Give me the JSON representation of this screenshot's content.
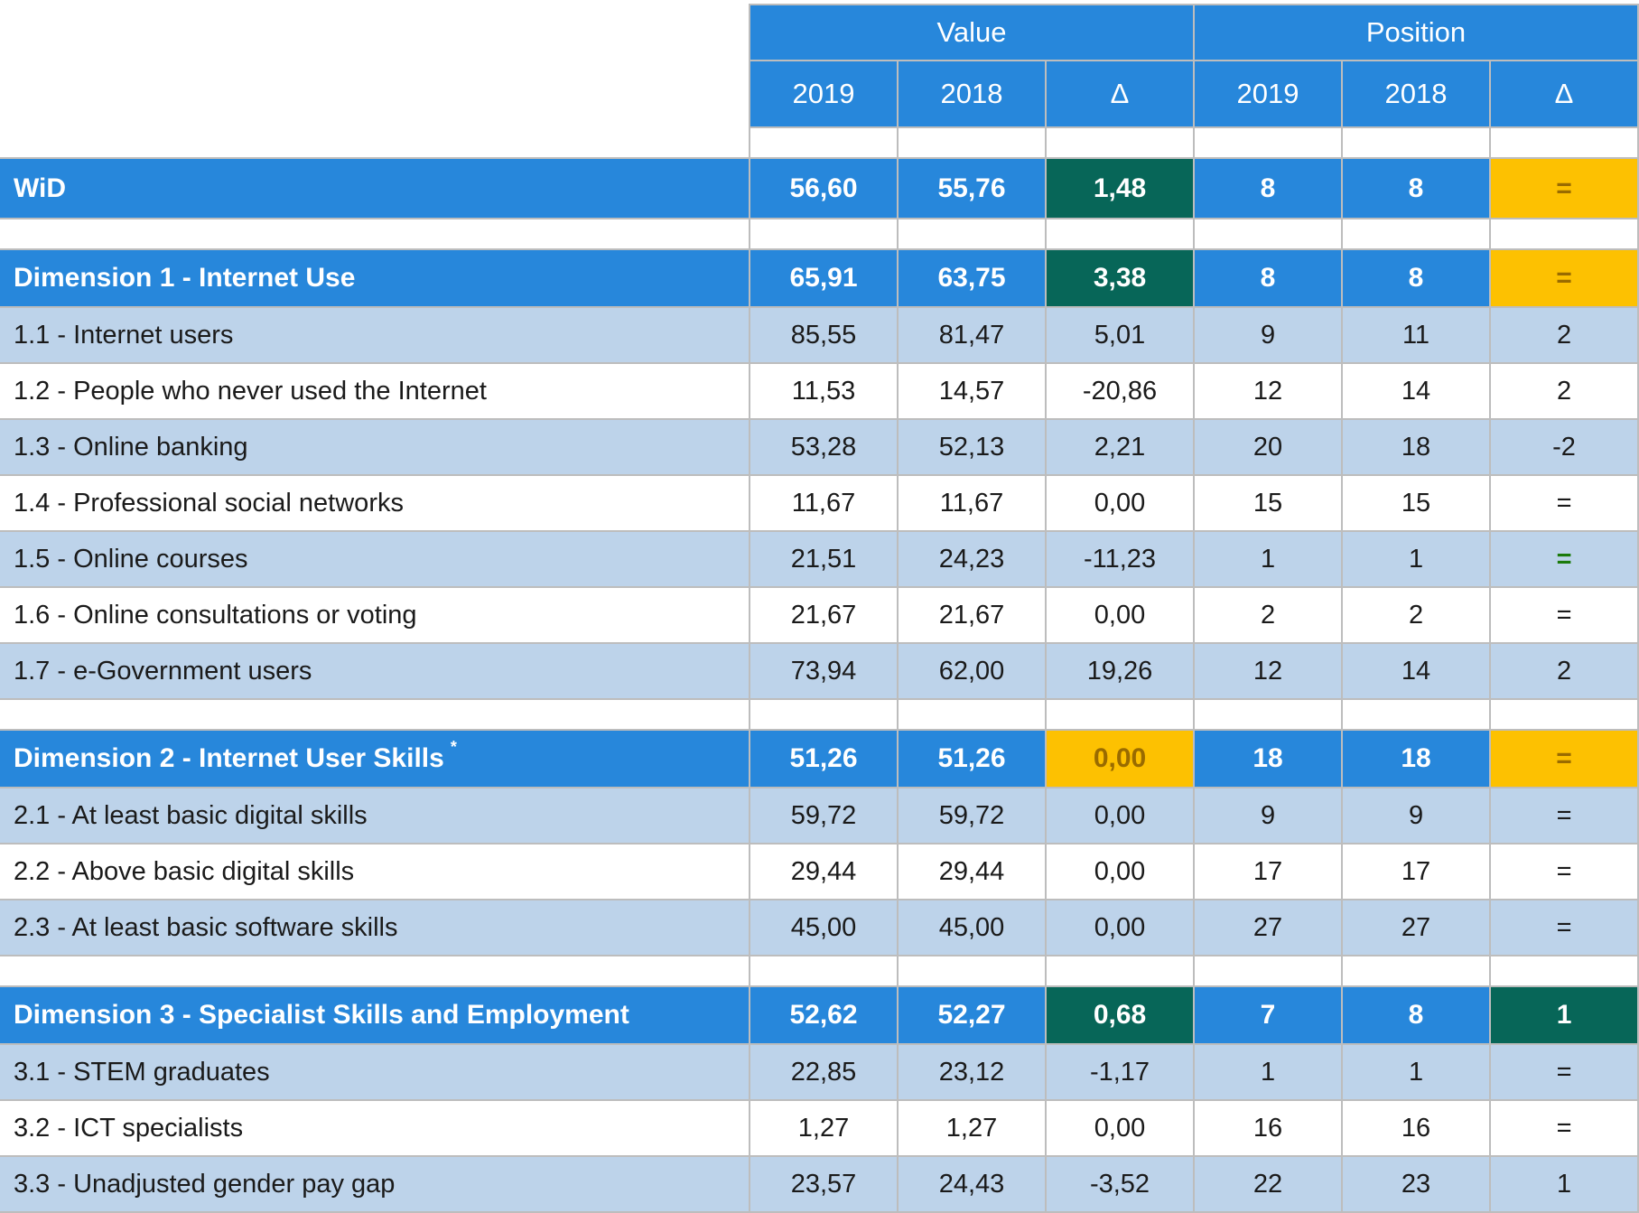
{
  "colors": {
    "blue": "#2787DB",
    "light_blue": "#BDD3EA",
    "green": "#076658",
    "yellow": "#FDC101",
    "yellow_text": "#996B00",
    "green_text": "#1B7A0B",
    "border": "#BDBDBD",
    "text": "#1A1A1A"
  },
  "chart_data": {
    "type": "table",
    "column_groups": [
      {
        "label": "Value",
        "span": 3
      },
      {
        "label": "Position",
        "span": 3
      }
    ],
    "columns": [
      "2019",
      "2018",
      "Δ",
      "2019",
      "2018",
      "Δ"
    ],
    "rows": [
      {
        "type": "spacer"
      },
      {
        "type": "total",
        "label": "WiD",
        "cells": [
          {
            "v": "56,60"
          },
          {
            "v": "55,76"
          },
          {
            "v": "1,48",
            "c": "green"
          },
          {
            "v": "8"
          },
          {
            "v": "8"
          },
          {
            "v": "=",
            "c": "yellow"
          }
        ]
      },
      {
        "type": "spacer"
      },
      {
        "type": "dimension",
        "label": "Dimension 1 - Internet Use",
        "cells": [
          {
            "v": "65,91"
          },
          {
            "v": "63,75"
          },
          {
            "v": "3,38",
            "c": "green"
          },
          {
            "v": "8"
          },
          {
            "v": "8"
          },
          {
            "v": "=",
            "c": "yellow"
          }
        ]
      },
      {
        "type": "indicator",
        "shade": "alt",
        "label": "1.1 - Internet users",
        "cells": [
          {
            "v": "85,55"
          },
          {
            "v": "81,47"
          },
          {
            "v": "5,01"
          },
          {
            "v": "9"
          },
          {
            "v": "11"
          },
          {
            "v": "2"
          }
        ]
      },
      {
        "type": "indicator",
        "shade": "",
        "label": "1.2 - People who never used the Internet",
        "cells": [
          {
            "v": "11,53"
          },
          {
            "v": "14,57"
          },
          {
            "v": "-20,86"
          },
          {
            "v": "12"
          },
          {
            "v": "14"
          },
          {
            "v": "2"
          }
        ]
      },
      {
        "type": "indicator",
        "shade": "alt",
        "label": "1.3 - Online banking",
        "cells": [
          {
            "v": "53,28"
          },
          {
            "v": "52,13"
          },
          {
            "v": "2,21"
          },
          {
            "v": "20"
          },
          {
            "v": "18"
          },
          {
            "v": "-2"
          }
        ]
      },
      {
        "type": "indicator",
        "shade": "",
        "label": "1.4 - Professional social networks",
        "cells": [
          {
            "v": "11,67"
          },
          {
            "v": "11,67"
          },
          {
            "v": "0,00"
          },
          {
            "v": "15"
          },
          {
            "v": "15"
          },
          {
            "v": "="
          }
        ]
      },
      {
        "type": "indicator",
        "shade": "alt",
        "label": "1.5 - Online courses",
        "cells": [
          {
            "v": "21,51"
          },
          {
            "v": "24,23"
          },
          {
            "v": "-11,23"
          },
          {
            "v": "1"
          },
          {
            "v": "1"
          },
          {
            "v": "=",
            "c": "green-text"
          }
        ]
      },
      {
        "type": "indicator",
        "shade": "",
        "label": "1.6 - Online consultations or voting",
        "cells": [
          {
            "v": "21,67"
          },
          {
            "v": "21,67"
          },
          {
            "v": "0,00"
          },
          {
            "v": "2"
          },
          {
            "v": "2"
          },
          {
            "v": "="
          }
        ]
      },
      {
        "type": "indicator",
        "shade": "alt",
        "label": "1.7 - e-Government users",
        "cells": [
          {
            "v": "73,94"
          },
          {
            "v": "62,00"
          },
          {
            "v": "19,26"
          },
          {
            "v": "12"
          },
          {
            "v": "14"
          },
          {
            "v": "2"
          }
        ]
      },
      {
        "type": "spacer"
      },
      {
        "type": "dimension",
        "label": "Dimension 2 - Internet User Skills",
        "sup": "*",
        "cells": [
          {
            "v": "51,26"
          },
          {
            "v": "51,26"
          },
          {
            "v": "0,00",
            "c": "yellow"
          },
          {
            "v": "18"
          },
          {
            "v": "18"
          },
          {
            "v": "=",
            "c": "yellow"
          }
        ]
      },
      {
        "type": "indicator",
        "shade": "alt",
        "label": "2.1 - At least basic digital skills",
        "cells": [
          {
            "v": "59,72"
          },
          {
            "v": "59,72"
          },
          {
            "v": "0,00"
          },
          {
            "v": "9"
          },
          {
            "v": "9"
          },
          {
            "v": "="
          }
        ]
      },
      {
        "type": "indicator",
        "shade": "",
        "label": "2.2 - Above basic digital skills",
        "cells": [
          {
            "v": "29,44"
          },
          {
            "v": "29,44"
          },
          {
            "v": "0,00"
          },
          {
            "v": "17"
          },
          {
            "v": "17"
          },
          {
            "v": "="
          }
        ]
      },
      {
        "type": "indicator",
        "shade": "alt",
        "label": "2.3 - At least basic software skills",
        "cells": [
          {
            "v": "45,00"
          },
          {
            "v": "45,00"
          },
          {
            "v": "0,00"
          },
          {
            "v": "27"
          },
          {
            "v": "27"
          },
          {
            "v": "="
          }
        ]
      },
      {
        "type": "spacer"
      },
      {
        "type": "dimension",
        "label": "Dimension 3 - Specialist Skills and Employment",
        "cells": [
          {
            "v": "52,62"
          },
          {
            "v": "52,27"
          },
          {
            "v": "0,68",
            "c": "green"
          },
          {
            "v": "7"
          },
          {
            "v": "8"
          },
          {
            "v": "1",
            "c": "green"
          }
        ]
      },
      {
        "type": "indicator",
        "shade": "alt",
        "label": "3.1 - STEM graduates",
        "cells": [
          {
            "v": "22,85"
          },
          {
            "v": "23,12"
          },
          {
            "v": "-1,17"
          },
          {
            "v": "1"
          },
          {
            "v": "1"
          },
          {
            "v": "="
          }
        ]
      },
      {
        "type": "indicator",
        "shade": "",
        "label": "3.2 - ICT specialists",
        "cells": [
          {
            "v": "1,27"
          },
          {
            "v": "1,27"
          },
          {
            "v": "0,00"
          },
          {
            "v": "16"
          },
          {
            "v": "16"
          },
          {
            "v": "="
          }
        ]
      },
      {
        "type": "indicator",
        "shade": "alt",
        "label": "3.3 - Unadjusted gender pay gap",
        "cells": [
          {
            "v": "23,57"
          },
          {
            "v": "24,43"
          },
          {
            "v": "-3,52"
          },
          {
            "v": "22"
          },
          {
            "v": "23"
          },
          {
            "v": "1"
          }
        ]
      }
    ]
  }
}
